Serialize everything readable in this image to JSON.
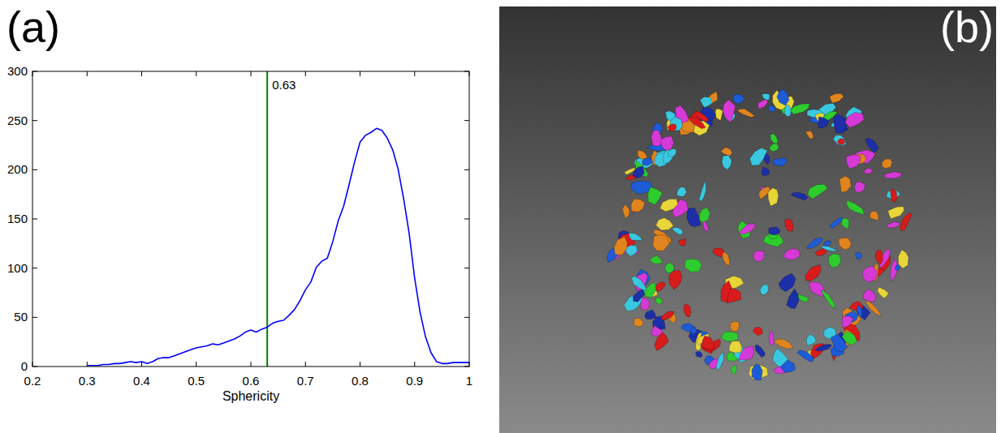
{
  "chart_data": {
    "type": "line",
    "panel": "(a)",
    "x_label": "Sphericity",
    "x": [
      0.3,
      0.31,
      0.32,
      0.33,
      0.34,
      0.35,
      0.36,
      0.37,
      0.38,
      0.39,
      0.4,
      0.41,
      0.42,
      0.43,
      0.44,
      0.45,
      0.46,
      0.47,
      0.48,
      0.49,
      0.5,
      0.51,
      0.52,
      0.53,
      0.54,
      0.55,
      0.56,
      0.57,
      0.58,
      0.59,
      0.6,
      0.61,
      0.62,
      0.63,
      0.64,
      0.65,
      0.66,
      0.67,
      0.68,
      0.69,
      0.7,
      0.71,
      0.72,
      0.73,
      0.74,
      0.75,
      0.76,
      0.77,
      0.78,
      0.79,
      0.8,
      0.81,
      0.82,
      0.83,
      0.84,
      0.85,
      0.86,
      0.87,
      0.88,
      0.89,
      0.9,
      0.91,
      0.92,
      0.93,
      0.94,
      0.95,
      0.96,
      0.97,
      0.98,
      0.99,
      1.0
    ],
    "values": [
      1,
      1,
      1,
      2,
      2,
      3,
      3,
      4,
      5,
      4,
      5,
      3,
      5,
      8,
      9,
      9,
      11,
      13,
      15,
      17,
      19,
      20,
      21,
      23,
      22,
      24,
      26,
      28,
      31,
      35,
      37,
      35,
      38,
      40,
      44,
      46,
      47,
      52,
      58,
      67,
      78,
      86,
      101,
      107,
      110,
      127,
      148,
      163,
      185,
      208,
      228,
      235,
      238,
      242,
      240,
      232,
      220,
      200,
      170,
      135,
      90,
      55,
      30,
      14,
      5,
      3,
      3,
      4,
      4,
      4,
      4
    ],
    "color": "#0000ff",
    "xlim": [
      0.2,
      1
    ],
    "xticks": [
      0.2,
      0.3,
      0.4,
      0.5,
      0.6,
      0.7,
      0.8,
      0.9,
      1
    ],
    "ylim": [
      0,
      300
    ],
    "yticks": [
      0,
      50,
      100,
      150,
      200,
      250,
      300
    ],
    "grid": false,
    "annotations": [
      {
        "x": 0.63,
        "text": "0.63",
        "color": "#008000"
      }
    ]
  },
  "image_panel": {
    "panel": "(b)"
  }
}
